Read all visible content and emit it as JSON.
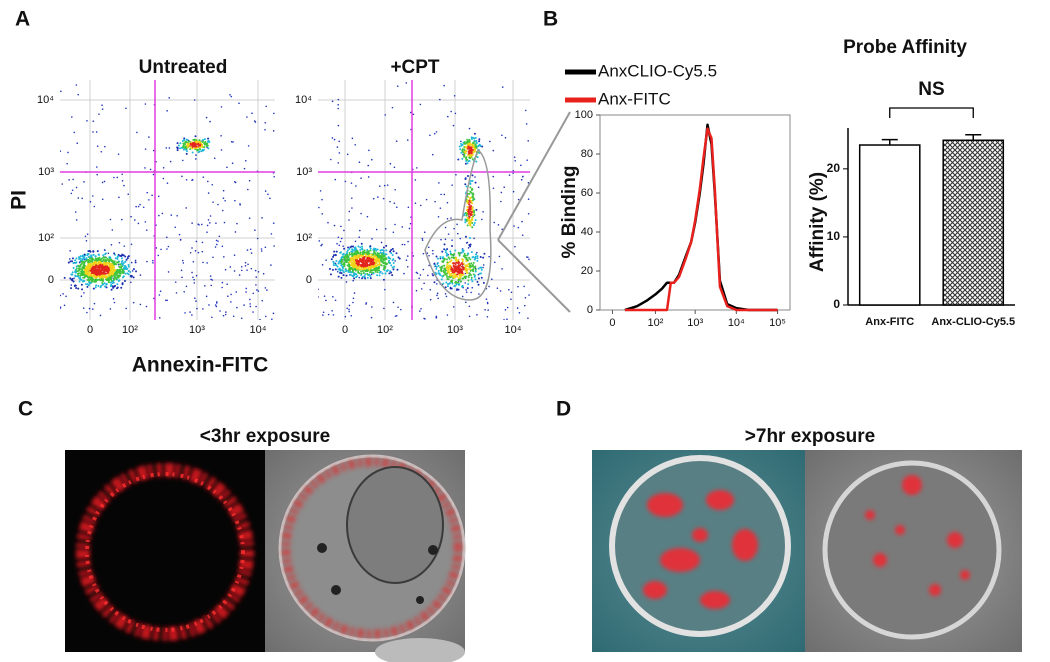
{
  "panel_labels": [
    "A",
    "B",
    "C",
    "D"
  ],
  "flow": {
    "x_label": "Annexin-FITC",
    "y_label": "PI",
    "plots": [
      {
        "title": "Untreated"
      },
      {
        "title": "+CPT"
      }
    ],
    "xtick_labels": [
      "0",
      "10²",
      "10³",
      "10⁴"
    ],
    "ytick_labels": [
      "0",
      "10²",
      "10³",
      "10⁴"
    ]
  },
  "chart_data": [
    {
      "type": "line",
      "y_label": "% Binding",
      "x_scale": "biexponential",
      "x": [
        10,
        30,
        60,
        100,
        150,
        200,
        250,
        300,
        400,
        600,
        800,
        1000,
        1300,
        1600,
        2000,
        2500,
        3000,
        4000,
        6000,
        10000,
        20000,
        100000
      ],
      "series": [
        {
          "name": "AnxCLIO-Cy5.5",
          "color": "#000000",
          "values": [
            0,
            2,
            5,
            8,
            11,
            14,
            14,
            14,
            18,
            28,
            35,
            45,
            60,
            75,
            95,
            85,
            60,
            15,
            3,
            1,
            0,
            0
          ]
        },
        {
          "name": "Anx-FITC",
          "color": "#e8211d",
          "values": [
            0,
            0,
            0,
            0,
            0,
            0,
            14,
            14,
            17,
            27,
            35,
            46,
            62,
            78,
            93,
            88,
            62,
            12,
            2,
            0,
            0,
            0
          ]
        }
      ],
      "xlim": [
        -5,
        200000
      ],
      "xticks": [
        0,
        {
          "value": 100,
          "label": "10²"
        },
        {
          "value": 1000,
          "label": "10³"
        },
        {
          "value": 10000,
          "label": "10⁴"
        },
        {
          "value": 100000,
          "label": "10⁵"
        }
      ],
      "ylim": [
        0,
        100
      ],
      "yticks": [
        0,
        20,
        40,
        60,
        80,
        100
      ]
    },
    {
      "type": "bar",
      "title": "Probe Affinity",
      "y_label": "Affinity (%)",
      "annotation": "NS",
      "categories": [
        "Anx-FITC",
        "Anx-CLIO-Cy5.5"
      ],
      "values": [
        23.5,
        24.2
      ],
      "errors": [
        0.8,
        0.8
      ],
      "fills": [
        "white",
        "hatch"
      ],
      "ylim": [
        0,
        26
      ],
      "yticks": [
        0,
        10,
        20
      ]
    }
  ],
  "microscopy": [
    {
      "title": "<3hr exposure"
    },
    {
      "title": ">7hr exposure"
    }
  ]
}
